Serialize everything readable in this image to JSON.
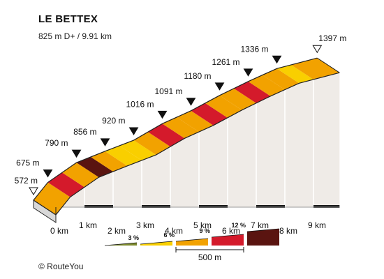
{
  "title": "LE BETTEX",
  "subtitle": "825 m D+ / 9.91 km",
  "credit": "© RouteYou",
  "chart_data": {
    "type": "area",
    "title": "LE BETTEX",
    "subtitle": "825 m D+ / 9.91 km",
    "x_unit": "km",
    "y_unit": "m",
    "xlim": [
      0,
      9.91
    ],
    "km_ticks": [
      "0 km",
      "1 km",
      "2 km",
      "3 km",
      "4 km",
      "5 km",
      "6 km",
      "7 km",
      "8 km",
      "9 km"
    ],
    "elevation_labels": [
      {
        "x": 0,
        "label": "572 m",
        "marker": "start"
      },
      {
        "x": 0.5,
        "label": "675 m",
        "marker": "km"
      },
      {
        "x": 1.5,
        "label": "790 m",
        "marker": "km"
      },
      {
        "x": 2.5,
        "label": "856 m",
        "marker": "km"
      },
      {
        "x": 3.5,
        "label": "920 m",
        "marker": "km"
      },
      {
        "x": 4.5,
        "label": "1016 m",
        "marker": "km"
      },
      {
        "x": 5.5,
        "label": "1091 m",
        "marker": "km"
      },
      {
        "x": 6.5,
        "label": "1180 m",
        "marker": "km"
      },
      {
        "x": 7.5,
        "label": "1261 m",
        "marker": "km"
      },
      {
        "x": 8.5,
        "label": "1336 m",
        "marker": "km"
      },
      {
        "x": 9.91,
        "label": "1397 m",
        "marker": "end"
      }
    ],
    "profile": [
      {
        "x": 0,
        "y": 572
      },
      {
        "x": 0.5,
        "y": 675
      },
      {
        "x": 1.5,
        "y": 790
      },
      {
        "x": 2.5,
        "y": 856
      },
      {
        "x": 3.5,
        "y": 920
      },
      {
        "x": 4.5,
        "y": 1016
      },
      {
        "x": 5.5,
        "y": 1091
      },
      {
        "x": 6.5,
        "y": 1180
      },
      {
        "x": 7.5,
        "y": 1261
      },
      {
        "x": 8.5,
        "y": 1336
      },
      {
        "x": 9.91,
        "y": 1397
      }
    ],
    "segments": [
      {
        "from": 0,
        "to": 0.5,
        "gradient_class": "6 %",
        "color": "#f2a200"
      },
      {
        "from": 0.5,
        "to": 1.0,
        "gradient_class": "9 %",
        "color": "#d41a2b"
      },
      {
        "from": 1.0,
        "to": 1.5,
        "gradient_class": "6 %",
        "color": "#f2a200"
      },
      {
        "from": 1.5,
        "to": 2.0,
        "gradient_class": "12 %",
        "color": "#5a1410"
      },
      {
        "from": 2.0,
        "to": 2.5,
        "gradient_class": "6 %",
        "color": "#f2a200"
      },
      {
        "from": 2.5,
        "to": 3.0,
        "gradient_class": "3 %",
        "color": "#f9cf00"
      },
      {
        "from": 3.0,
        "to": 3.5,
        "gradient_class": "3 %",
        "color": "#f9cf00"
      },
      {
        "from": 3.5,
        "to": 4.0,
        "gradient_class": "6 %",
        "color": "#f2a200"
      },
      {
        "from": 4.0,
        "to": 4.5,
        "gradient_class": "9 %",
        "color": "#d41a2b"
      },
      {
        "from": 4.5,
        "to": 5.0,
        "gradient_class": "6 %",
        "color": "#f2a200"
      },
      {
        "from": 5.0,
        "to": 5.5,
        "gradient_class": "6 %",
        "color": "#f2a200"
      },
      {
        "from": 5.5,
        "to": 6.0,
        "gradient_class": "9 %",
        "color": "#d41a2b"
      },
      {
        "from": 6.0,
        "to": 6.5,
        "gradient_class": "6 %",
        "color": "#f2a200"
      },
      {
        "from": 6.5,
        "to": 7.0,
        "gradient_class": "6 %",
        "color": "#f2a200"
      },
      {
        "from": 7.0,
        "to": 7.5,
        "gradient_class": "9 %",
        "color": "#d41a2b"
      },
      {
        "from": 7.5,
        "to": 8.0,
        "gradient_class": "6 %",
        "color": "#f2a200"
      },
      {
        "from": 8.0,
        "to": 8.5,
        "gradient_class": "6 %",
        "color": "#f2a200"
      },
      {
        "from": 8.5,
        "to": 9.0,
        "gradient_class": "3 %",
        "color": "#f9cf00"
      },
      {
        "from": 9.0,
        "to": 9.91,
        "gradient_class": "6 %",
        "color": "#f2a200"
      }
    ],
    "legend": {
      "placement": "bottom",
      "items": [
        {
          "label": "",
          "color": "#7d8a2e"
        },
        {
          "label": "3 %",
          "color": "#f9cf00"
        },
        {
          "label": "6 %",
          "color": "#f2a200"
        },
        {
          "label": "9 %",
          "color": "#d41a2b"
        },
        {
          "label": "12 %",
          "color": "#5a1410"
        }
      ],
      "scale_label": "500 m"
    },
    "colors": {
      "side_fill": "#efebe7",
      "base_top": "#9a9a9a",
      "base_front": "#d8d8d8",
      "outline": "#222222"
    }
  }
}
